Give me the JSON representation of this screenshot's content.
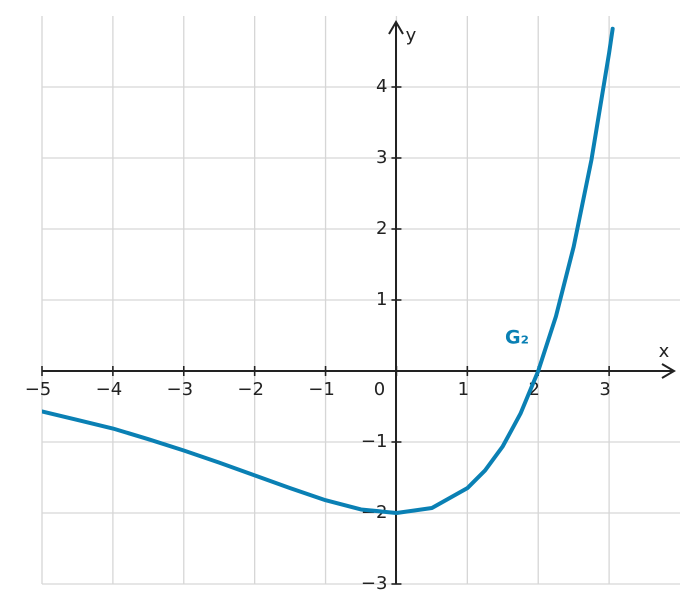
{
  "chart_data": {
    "type": "line",
    "x_label": "x",
    "y_label": "y",
    "annotation": "G₂",
    "x": [
      -5,
      -4.5,
      -4,
      -3.5,
      -3,
      -2.5,
      -2,
      -1.5,
      -1,
      -0.5,
      0,
      0.5,
      1,
      1.25,
      1.5,
      1.75,
      2,
      2.25,
      2.5,
      2.75,
      3,
      3.05
    ],
    "series": [
      {
        "name": "G₂",
        "color": "#0a80b4",
        "values": [
          -0.57,
          -0.69,
          -0.81,
          -0.96,
          -1.12,
          -1.29,
          -1.47,
          -1.65,
          -1.82,
          -1.95,
          -2,
          -1.93,
          -1.65,
          -1.4,
          -1.06,
          -0.6,
          0,
          0.77,
          1.75,
          2.97,
          4.48,
          4.82
        ]
      }
    ],
    "xlim": [
      -5,
      4
    ],
    "ylim": [
      -3,
      5
    ],
    "xticks": [
      {
        "value": -5,
        "label": "−5"
      },
      {
        "value": -4,
        "label": "−4"
      },
      {
        "value": -3,
        "label": "−3"
      },
      {
        "value": -2,
        "label": "−2"
      },
      {
        "value": -1,
        "label": "−1"
      },
      0,
      1,
      2,
      3
    ],
    "yticks": [
      {
        "value": -3,
        "label": "−3"
      },
      {
        "value": -2,
        "label": "−2"
      },
      {
        "value": -1,
        "label": "−1"
      },
      1,
      2,
      3,
      4
    ],
    "grid": true
  }
}
